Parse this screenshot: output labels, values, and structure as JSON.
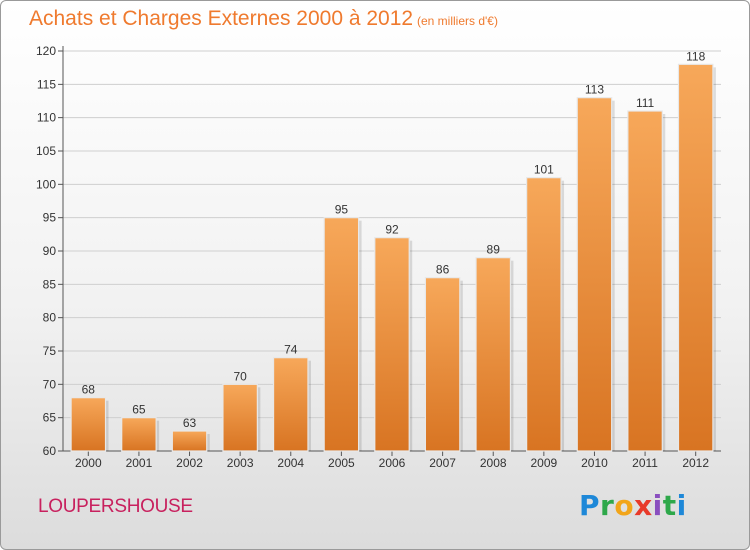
{
  "header": {
    "title": "Achats et Charges Externes 2000 à 2012",
    "subtitle": "(en milliers d'€)"
  },
  "footer": {
    "commune": "LOUPERSHOUSE",
    "logo_letters": [
      {
        "char": "P",
        "color": "#1e88d8"
      },
      {
        "char": "r",
        "color": "#2ea84a"
      },
      {
        "char": "o",
        "color": "#f2a51a"
      },
      {
        "char": "x",
        "color": "#e83a2a"
      },
      {
        "char": "i",
        "color": "#8a4fbf"
      },
      {
        "char": "t",
        "color": "#2ea84a"
      },
      {
        "char": "i",
        "color": "#1e88d8"
      }
    ]
  },
  "colors": {
    "bar_light": "#f7a85a",
    "bar_dark": "#d87422",
    "grid": "#cfcfcf",
    "title": "#ef7a2e"
  },
  "chart_data": {
    "type": "bar",
    "title": "Achats et Charges Externes 2000 à 2012",
    "categories": [
      "2000",
      "2001",
      "2002",
      "2003",
      "2004",
      "2005",
      "2006",
      "2007",
      "2008",
      "2009",
      "2010",
      "2011",
      "2012"
    ],
    "values": [
      68,
      65,
      63,
      70,
      74,
      95,
      92,
      86,
      89,
      101,
      113,
      111,
      118
    ],
    "ylim": [
      60,
      120
    ],
    "yticks": [
      60,
      65,
      70,
      75,
      80,
      85,
      90,
      95,
      100,
      105,
      110,
      115,
      120
    ],
    "grid": true,
    "xlabel": "",
    "ylabel": ""
  }
}
